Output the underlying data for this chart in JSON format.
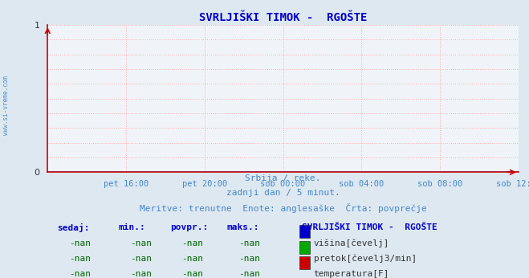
{
  "title": "SVRLJIŠKI TIMOK -  RGOŠTE",
  "title_color": "#0000cc",
  "bg_color": "#dde8f0",
  "plot_bg_color": "#f0f4f8",
  "grid_color": "#ffaaaa",
  "axis_color": "#cc0000",
  "xlim": [
    0,
    288
  ],
  "ylim": [
    0,
    1
  ],
  "yticks": [
    0,
    1
  ],
  "xtick_labels": [
    "pet 16:00",
    "pet 20:00",
    "sob 00:00",
    "sob 04:00",
    "sob 08:00",
    "sob 12:00"
  ],
  "xtick_positions": [
    48,
    96,
    144,
    192,
    240,
    288
  ],
  "h_grid_positions": [
    0.1,
    0.2,
    0.3,
    0.4,
    0.5,
    0.6,
    0.7,
    0.8,
    0.9,
    1.0
  ],
  "watermark": "www.si-vreme.com",
  "subtitle1": "Srbija / reke.",
  "subtitle2": "zadnji dan / 5 minut.",
  "subtitle3": "Meritve: trenutne  Enote: anglesaške  Črta: povprečje",
  "subtitle_color": "#4488cc",
  "col_headers": [
    "sedaj:",
    "min.:",
    "povpr.:",
    "maks.:"
  ],
  "col_header_color": "#0000cc",
  "legend_title": "SVRLJIŠKI TIMOK -  RGOŠTE",
  "legend_title_color": "#0000cc",
  "legend_entries": [
    {
      "label": "višina[čevelj]",
      "color": "#0000cc"
    },
    {
      "label": "pretok[čevelj3/min]",
      "color": "#00aa00"
    },
    {
      "label": "temperatura[F]",
      "color": "#cc0000"
    }
  ],
  "nan_color": "#006600",
  "line_color": "#0000cc",
  "line_y": 0
}
